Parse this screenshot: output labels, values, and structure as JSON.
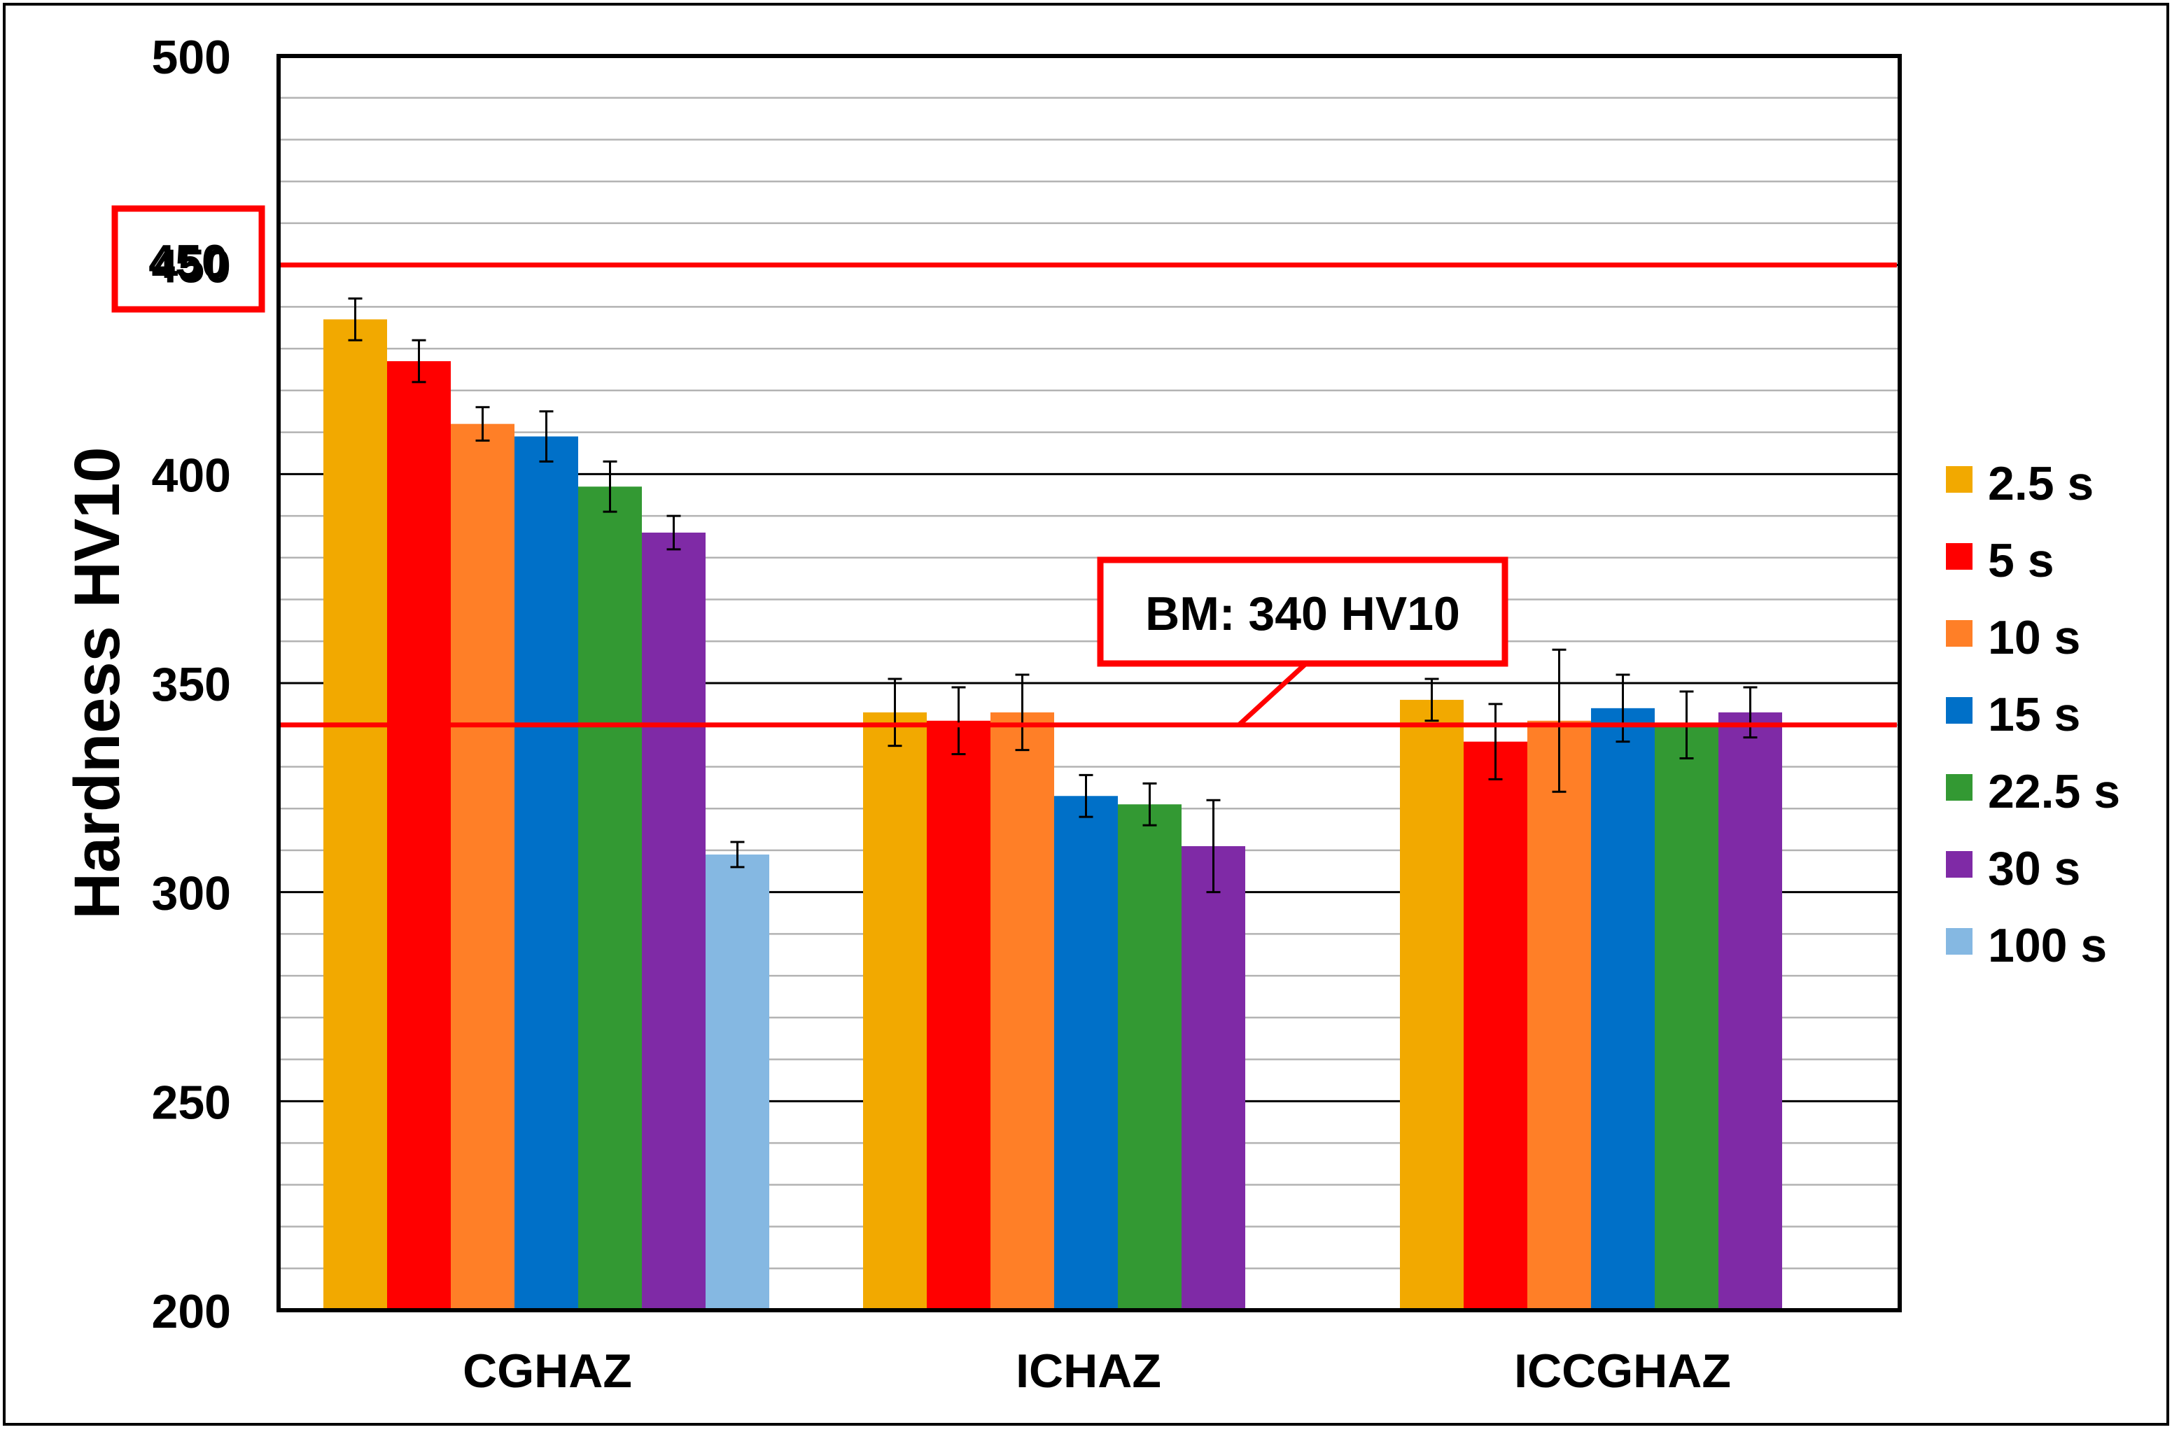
{
  "chart_data": {
    "type": "bar",
    "ylabel": "Hardness HV10",
    "xlabel": "",
    "ylim": [
      200,
      500
    ],
    "yticks": [
      200,
      250,
      300,
      350,
      400,
      450,
      500
    ],
    "minor_gridline_step": 10,
    "categories": [
      "CGHAZ",
      "ICHAZ",
      "ICCGHAZ"
    ],
    "series": [
      {
        "name": "2.5 s",
        "color": "#F2A900",
        "values": [
          437,
          343,
          346
        ],
        "errors": [
          5,
          8,
          5
        ]
      },
      {
        "name": "5 s",
        "color": "#FF0000",
        "values": [
          427,
          341,
          336
        ],
        "errors": [
          5,
          8,
          9
        ]
      },
      {
        "name": "10 s",
        "color": "#FF7F27",
        "values": [
          412,
          343,
          341
        ],
        "errors": [
          4,
          9,
          17
        ]
      },
      {
        "name": "15 s",
        "color": "#0070C8",
        "values": [
          409,
          323,
          344
        ],
        "errors": [
          6,
          5,
          8
        ]
      },
      {
        "name": "22.5 s",
        "color": "#339933",
        "values": [
          397,
          321,
          340
        ],
        "errors": [
          6,
          5,
          8
        ]
      },
      {
        "name": "30 s",
        "color": "#7F2AA6",
        "values": [
          386,
          311,
          343
        ],
        "errors": [
          4,
          11,
          6
        ]
      },
      {
        "name": "100 s",
        "color": "#85B8E2",
        "values": [
          309,
          null,
          null
        ],
        "errors": [
          3,
          null,
          null
        ]
      }
    ],
    "reference_lines": [
      {
        "value": 450,
        "color": "#FF0000",
        "label": "450"
      },
      {
        "value": 340,
        "color": "#FF0000",
        "label": "BM: 340 HV10"
      }
    ],
    "grid": true,
    "legend_position": "right"
  }
}
